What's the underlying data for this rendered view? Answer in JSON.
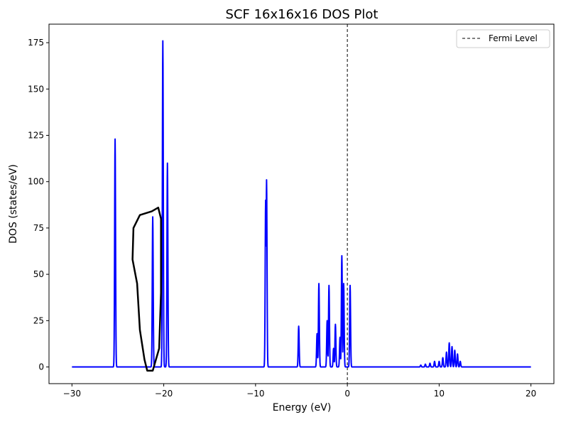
{
  "chart_data": {
    "type": "line",
    "title": "SCF 16x16x16 DOS Plot",
    "xlabel": "Energy (eV)",
    "ylabel": "DOS (states/eV)",
    "xlim": [
      -32.5,
      22.5
    ],
    "ylim": [
      -9,
      185
    ],
    "xticks": [
      -30,
      -20,
      -10,
      0,
      10,
      20
    ],
    "xtick_labels": [
      "−30",
      "−20",
      "−10",
      "0",
      "10",
      "20"
    ],
    "yticks": [
      0,
      25,
      50,
      75,
      100,
      125,
      150,
      175
    ],
    "ytick_labels": [
      "0",
      "25",
      "50",
      "75",
      "100",
      "125",
      "150",
      "175"
    ],
    "grid": false,
    "legend": {
      "position": "top-right",
      "entries": [
        "Fermi Level"
      ]
    },
    "colors": {
      "dos": "#0000ff",
      "fermi": "#000000",
      "annotation": "#000000"
    },
    "series": [
      {
        "color": "#0000ff",
        "peaks": [
          {
            "center": -25.3,
            "height": 123
          },
          {
            "center": -21.2,
            "height": 81
          },
          {
            "center": -20.1,
            "height": 176
          },
          {
            "center": -19.6,
            "height": 110
          },
          {
            "center": -8.9,
            "height": 90
          },
          {
            "center": -8.8,
            "height": 101
          },
          {
            "center": -5.3,
            "height": 22
          },
          {
            "center": -3.3,
            "height": 18
          },
          {
            "center": -3.1,
            "height": 45
          },
          {
            "center": -2.2,
            "height": 25
          },
          {
            "center": -2.0,
            "height": 44
          },
          {
            "center": -1.5,
            "height": 10
          },
          {
            "center": -1.3,
            "height": 23
          },
          {
            "center": -0.8,
            "height": 16
          },
          {
            "center": -0.6,
            "height": 60
          },
          {
            "center": -0.4,
            "height": 45
          },
          {
            "center": 0.3,
            "height": 44
          },
          {
            "center": 8.0,
            "height": 1
          },
          {
            "center": 8.5,
            "height": 1.5
          },
          {
            "center": 9.0,
            "height": 2
          },
          {
            "center": 9.5,
            "height": 3
          },
          {
            "center": 10.0,
            "height": 3
          },
          {
            "center": 10.4,
            "height": 5
          },
          {
            "center": 10.8,
            "height": 8
          },
          {
            "center": 11.1,
            "height": 13
          },
          {
            "center": 11.4,
            "height": 11
          },
          {
            "center": 11.7,
            "height": 9
          },
          {
            "center": 12.0,
            "height": 7
          },
          {
            "center": 12.3,
            "height": 3
          }
        ]
      }
    ],
    "fermi_level": 0,
    "annotation_outline": [
      [
        -21.3,
        84
      ],
      [
        -20.6,
        86
      ],
      [
        -20.3,
        80
      ],
      [
        -20.3,
        40
      ],
      [
        -20.5,
        10
      ],
      [
        -21.2,
        -2
      ],
      [
        -21.8,
        -2
      ],
      [
        -22.1,
        4
      ],
      [
        -22.6,
        20
      ],
      [
        -22.9,
        45
      ],
      [
        -23.4,
        58
      ],
      [
        -23.3,
        75
      ],
      [
        -22.6,
        82
      ],
      [
        -21.3,
        84
      ]
    ]
  }
}
